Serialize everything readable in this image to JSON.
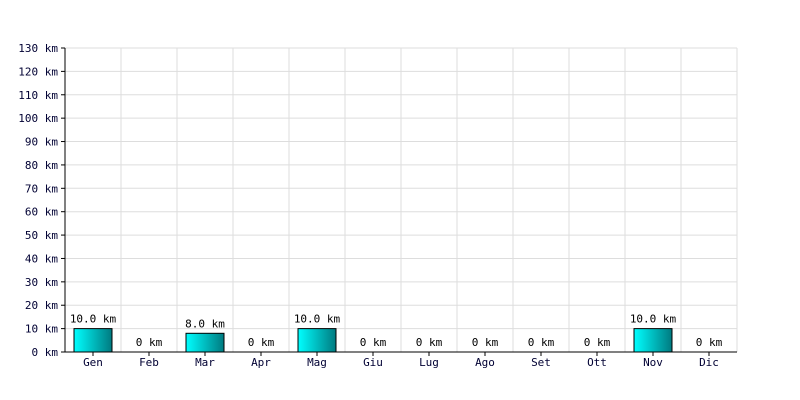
{
  "chart_data": {
    "type": "bar",
    "title": "",
    "xlabel": "",
    "ylabel": "",
    "unit": "km",
    "categories": [
      "Gen",
      "Feb",
      "Mar",
      "Apr",
      "Mag",
      "Giu",
      "Lug",
      "Ago",
      "Set",
      "Ott",
      "Nov",
      "Dic"
    ],
    "values": [
      10.0,
      0,
      8.0,
      0,
      10.0,
      0,
      0,
      0,
      0,
      0,
      10.0,
      0
    ],
    "data_labels": [
      "10.0 km",
      "0 km",
      "8.0 km",
      "0 km",
      "10.0 km",
      "0 km",
      "0 km",
      "0 km",
      "0 km",
      "0 km",
      "10.0 km",
      "0 km"
    ],
    "ylim": [
      0,
      130
    ],
    "y_ticks": [
      0,
      10,
      20,
      30,
      40,
      50,
      60,
      70,
      80,
      90,
      100,
      110,
      120,
      130
    ],
    "y_tick_labels": [
      "0 km",
      "10 km",
      "20 km",
      "30 km",
      "40 km",
      "50 km",
      "60 km",
      "70 km",
      "80 km",
      "90 km",
      "100 km",
      "110 km",
      "120 km",
      "130 km"
    ],
    "grid": true,
    "legend": "none",
    "colors": {
      "bar_light": "#00ffff",
      "bar_dark": "#007a80",
      "bar_edge": "#000000",
      "grid": "#dddddd",
      "axis": "#000000",
      "tick_text": "#000033"
    }
  }
}
